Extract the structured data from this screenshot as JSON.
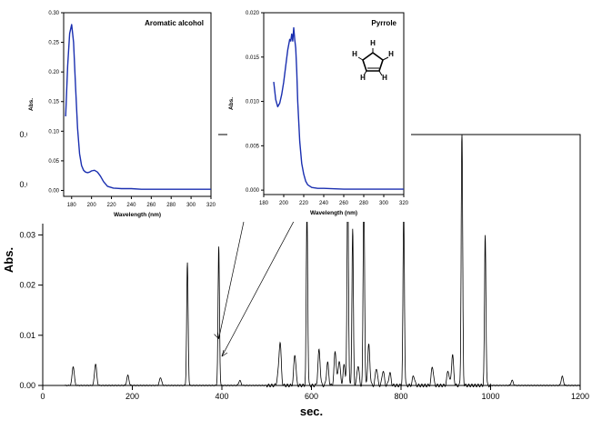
{
  "chart_data": [
    {
      "type": "line",
      "title": "",
      "xlabel": "sec.",
      "ylabel": "Abs.",
      "xlim": [
        0,
        1200
      ],
      "ylim": [
        0,
        0.05
      ],
      "x_ticks": [
        0,
        200,
        400,
        600,
        800,
        1000,
        1200
      ],
      "x_tick_labels": [
        "0",
        "200",
        "400",
        "600",
        "800",
        "1000",
        "1200"
      ],
      "y_ticks": [
        0,
        0.01,
        0.02,
        0.03,
        0.04,
        0.05
      ],
      "y_tick_labels": [
        "0.00",
        "0.01",
        "0.02",
        "0.03",
        "0.04",
        "0.05"
      ],
      "grid": false,
      "legend": "none",
      "line_color": "#000000",
      "baseline": 0.0,
      "peaks": [
        {
          "x": 68,
          "y": 0.0038
        },
        {
          "x": 118,
          "y": 0.0043
        },
        {
          "x": 190,
          "y": 0.002
        },
        {
          "x": 263,
          "y": 0.0016
        },
        {
          "x": 323,
          "y": 0.0244
        },
        {
          "x": 393,
          "y": 0.0276
        },
        {
          "x": 440,
          "y": 0.001
        },
        {
          "x": 525,
          "y": 0.0016
        },
        {
          "x": 530,
          "y": 0.0085
        },
        {
          "x": 563,
          "y": 0.0062
        },
        {
          "x": 590,
          "y": 0.035
        },
        {
          "x": 617,
          "y": 0.007
        },
        {
          "x": 636,
          "y": 0.0045
        },
        {
          "x": 653,
          "y": 0.0068
        },
        {
          "x": 662,
          "y": 0.005
        },
        {
          "x": 673,
          "y": 0.004
        },
        {
          "x": 681,
          "y": 0.042
        },
        {
          "x": 692,
          "y": 0.031
        },
        {
          "x": 704,
          "y": 0.004
        },
        {
          "x": 717,
          "y": 0.039
        },
        {
          "x": 728,
          "y": 0.008
        },
        {
          "x": 745,
          "y": 0.0035
        },
        {
          "x": 760,
          "y": 0.003
        },
        {
          "x": 775,
          "y": 0.0025
        },
        {
          "x": 806,
          "y": 0.035
        },
        {
          "x": 828,
          "y": 0.002
        },
        {
          "x": 870,
          "y": 0.0038
        },
        {
          "x": 905,
          "y": 0.003
        },
        {
          "x": 915,
          "y": 0.006
        },
        {
          "x": 936,
          "y": 0.051
        },
        {
          "x": 988,
          "y": 0.03
        },
        {
          "x": 1048,
          "y": 0.001
        },
        {
          "x": 1160,
          "y": 0.0018
        }
      ],
      "annotation_targets": [
        {
          "inset": "Aromatic alcohol",
          "x": 393,
          "y": 0.0093
        },
        {
          "inset": "Pyrrole",
          "x": 400,
          "y": 0.0058
        }
      ]
    },
    {
      "type": "line",
      "title": "Aromatic alcohol",
      "xlabel": "Wavelength (nm)",
      "ylabel": "Abs.",
      "xlim": [
        172,
        320
      ],
      "ylim": [
        -0.01,
        0.3
      ],
      "x_ticks": [
        180,
        200,
        220,
        240,
        260,
        280,
        300,
        320
      ],
      "x_tick_labels": [
        "180",
        "200",
        "220",
        "240",
        "260",
        "280",
        "300",
        "320"
      ],
      "y_ticks": [
        0,
        0.05,
        0.1,
        0.15,
        0.2,
        0.25,
        0.3
      ],
      "y_tick_labels": [
        "0.00",
        "0.05",
        "0.10",
        "0.15",
        "0.20",
        "0.25",
        "0.30"
      ],
      "line_color": "#1a2fb0",
      "x": [
        174,
        176,
        178,
        180,
        182,
        184,
        186,
        188,
        190,
        192,
        194,
        196,
        198,
        200,
        203,
        206,
        209,
        212,
        216,
        222,
        230,
        240,
        250,
        260,
        280,
        300,
        320
      ],
      "y": [
        0.125,
        0.21,
        0.265,
        0.28,
        0.25,
        0.175,
        0.105,
        0.062,
        0.042,
        0.034,
        0.031,
        0.03,
        0.031,
        0.033,
        0.034,
        0.031,
        0.024,
        0.015,
        0.007,
        0.004,
        0.003,
        0.003,
        0.002,
        0.002,
        0.002,
        0.002,
        0.002
      ]
    },
    {
      "type": "line",
      "title": "Pyrrole",
      "xlabel": "Wavelength (nm)",
      "ylabel": "Abs.",
      "xlim": [
        180,
        320
      ],
      "ylim": [
        -0.0005,
        0.02
      ],
      "x_ticks": [
        180,
        200,
        220,
        240,
        260,
        280,
        300,
        320
      ],
      "x_tick_labels": [
        "180",
        "200",
        "220",
        "240",
        "260",
        "280",
        "300",
        "320"
      ],
      "y_ticks": [
        0,
        0.005,
        0.01,
        0.015,
        0.02
      ],
      "y_tick_labels": [
        "0.000",
        "0.005",
        "0.010",
        "0.015",
        "0.020"
      ],
      "line_color": "#1a2fb0",
      "x": [
        190,
        192,
        194,
        196,
        198,
        200,
        202,
        204,
        206,
        207,
        208,
        209,
        210,
        211,
        212,
        213,
        214,
        216,
        218,
        220,
        222,
        224,
        228,
        234,
        240,
        260,
        280,
        300,
        320
      ],
      "y": [
        0.0122,
        0.0102,
        0.0094,
        0.0098,
        0.0108,
        0.0122,
        0.014,
        0.0158,
        0.017,
        0.0168,
        0.0176,
        0.0168,
        0.0183,
        0.017,
        0.016,
        0.0135,
        0.01,
        0.0055,
        0.003,
        0.0018,
        0.001,
        0.0006,
        0.0003,
        0.0002,
        0.0002,
        0.0001,
        0.0001,
        0.0001,
        0.0001
      ]
    }
  ],
  "structure": {
    "atoms": [
      "H",
      "H",
      "H",
      "H",
      "H"
    ],
    "ring": "pyrrole",
    "color": "#000000"
  }
}
